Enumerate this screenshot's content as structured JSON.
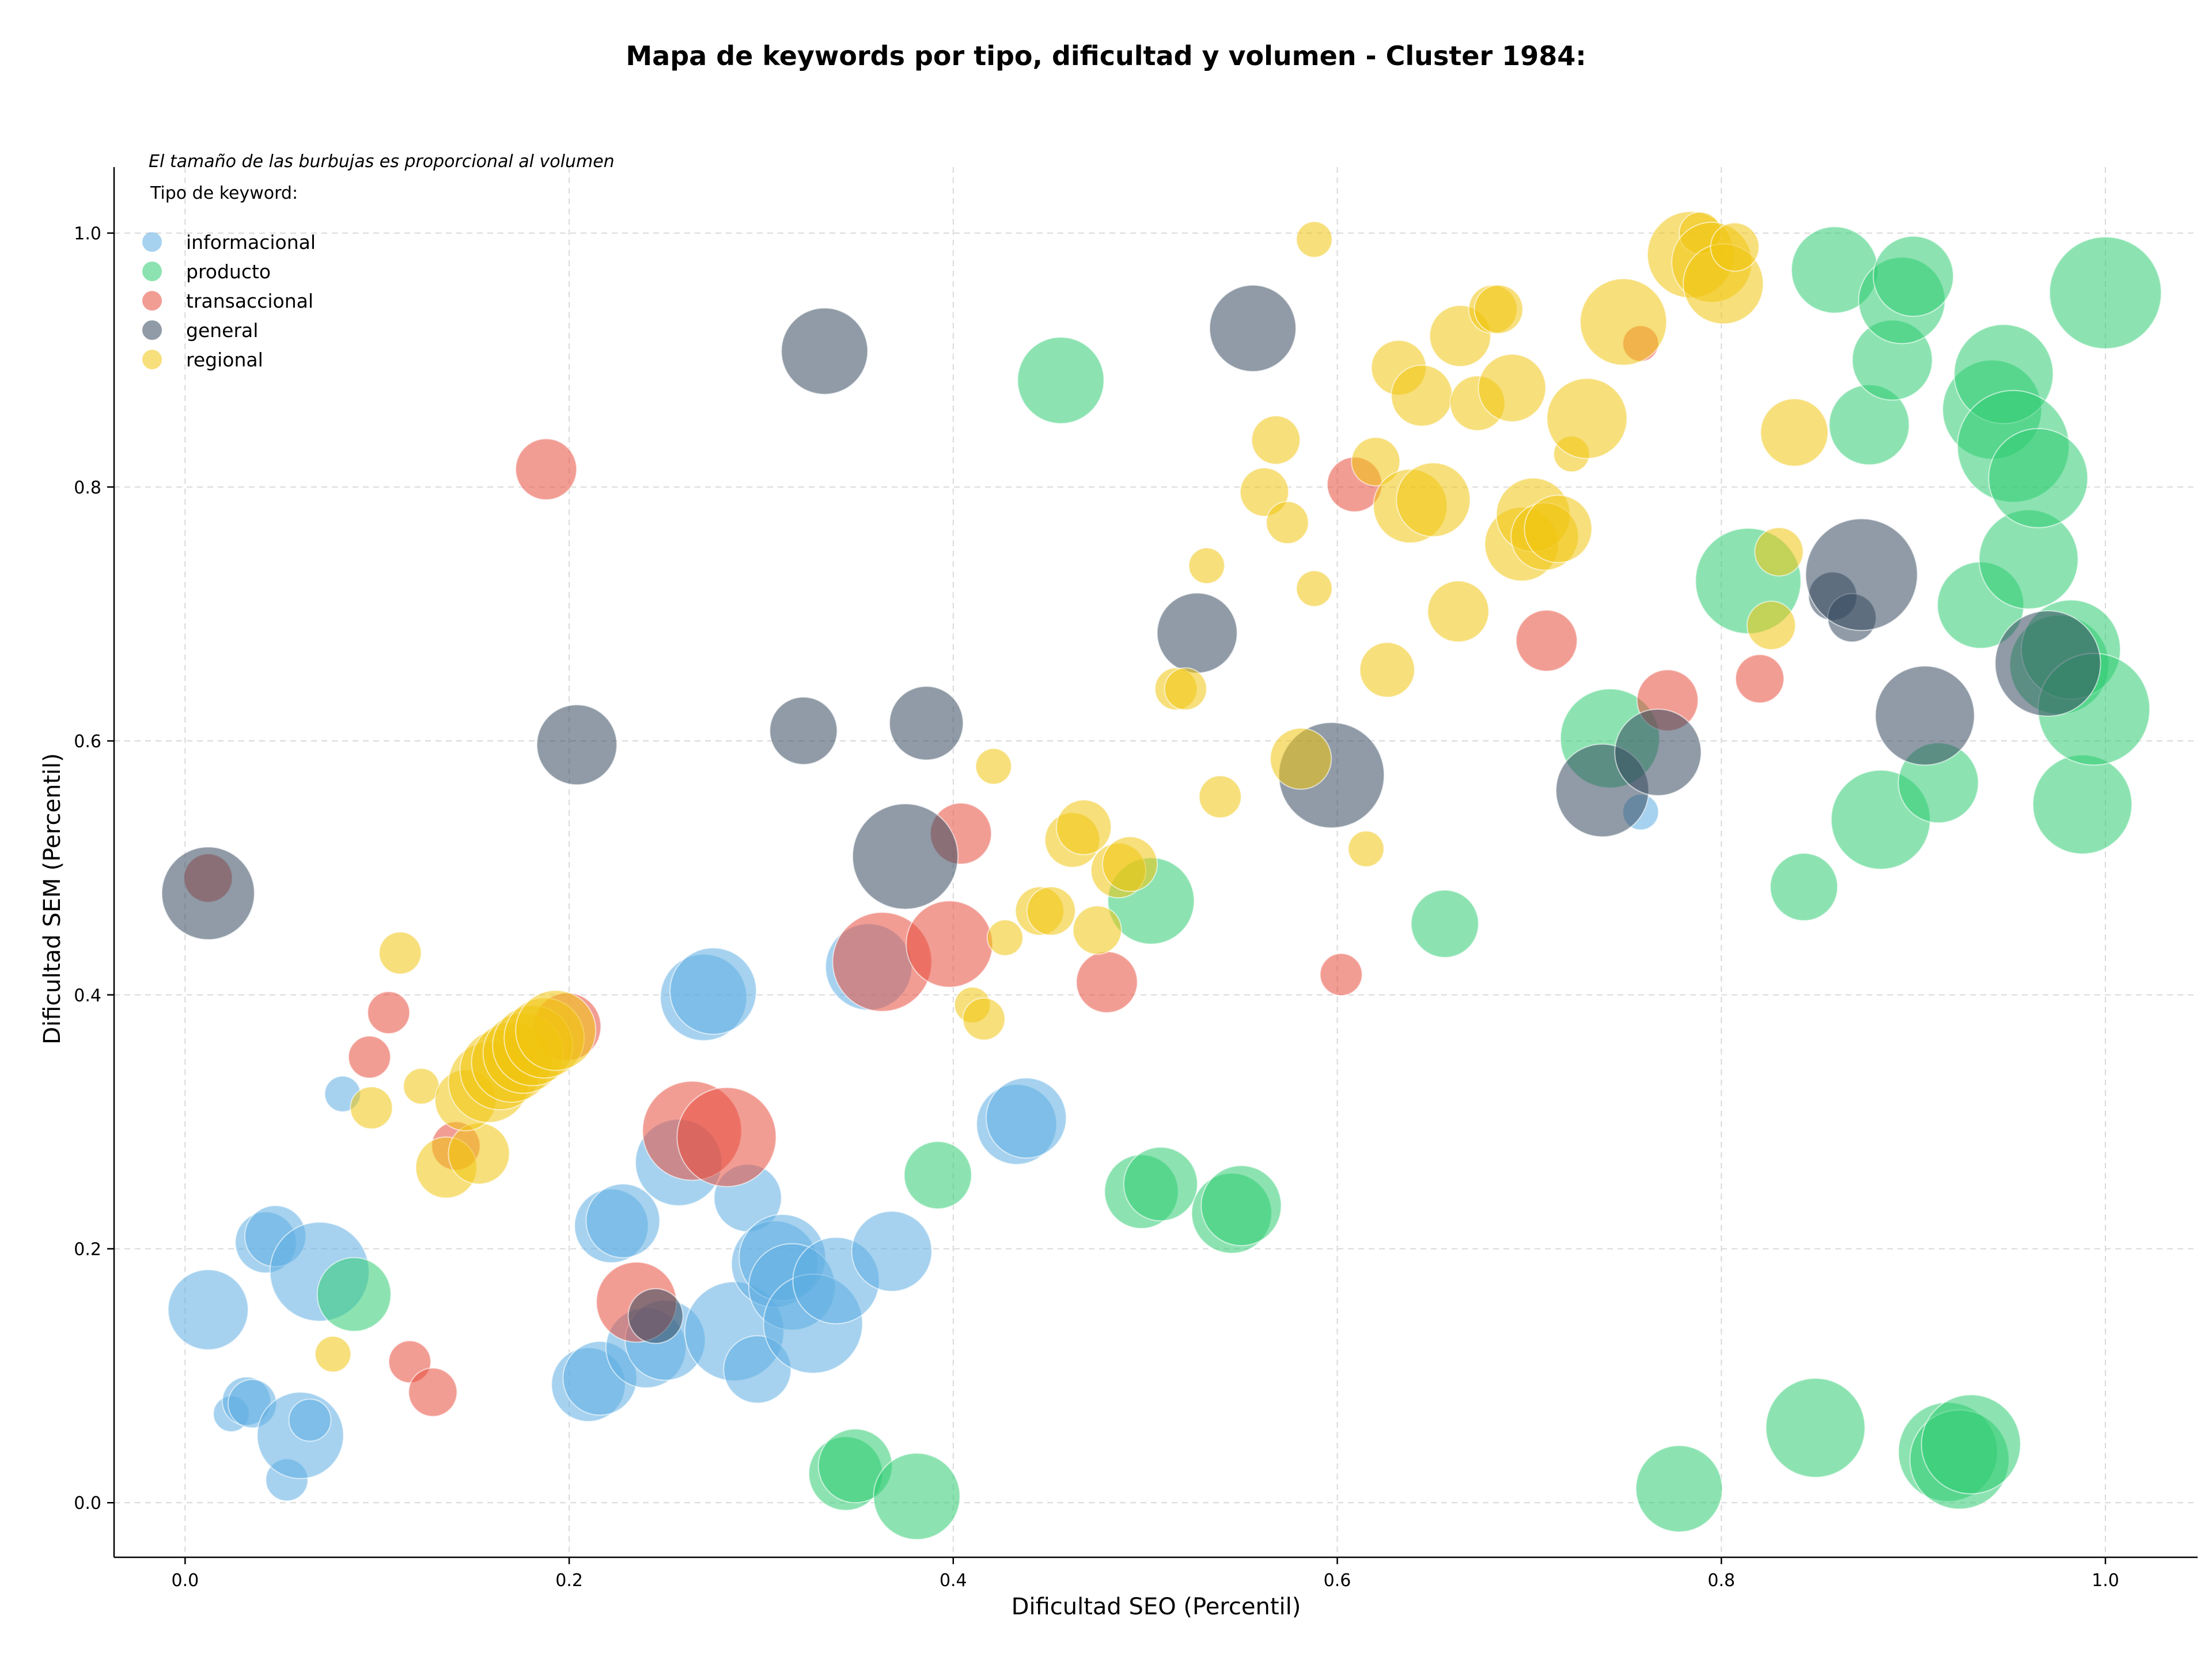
{
  "chart_data": {
    "type": "scatter",
    "title": "Mapa de keywords por tipo, dificultad y volumen - Cluster 1984:",
    "xlabel": "Dificultad SEO (Percentil)",
    "ylabel": "Dificultad SEM (Percentil)",
    "note": "El tamaño de las burbujas es proporcional al volumen",
    "legend_title": "Tipo de keyword:",
    "legend_position": "top-left",
    "xlim": [
      -0.037,
      1.048
    ],
    "ylim": [
      -0.043,
      1.052
    ],
    "x_ticks": [
      "0.0",
      "0.2",
      "0.4",
      "0.6",
      "0.8",
      "1.0"
    ],
    "y_ticks": [
      "0.0",
      "0.2",
      "0.4",
      "0.6",
      "0.8",
      "1.0"
    ],
    "grid": true,
    "size_encoding": "volumen",
    "colors": {
      "informacional": "#5dade2",
      "producto": "#2ecc71",
      "transaccional": "#e74c3c",
      "general": "#34495e",
      "regional": "#f1c40f"
    },
    "series": [
      {
        "name": "informacional",
        "color": "#5dade2",
        "points": [
          [
            0.012,
            0.152,
            0.45
          ],
          [
            0.024,
            0.07,
            0.1
          ],
          [
            0.032,
            0.08,
            0.2
          ],
          [
            0.035,
            0.078,
            0.2
          ],
          [
            0.042,
            0.205,
            0.3
          ],
          [
            0.047,
            0.21,
            0.3
          ],
          [
            0.053,
            0.018,
            0.15
          ],
          [
            0.06,
            0.053,
            0.5
          ],
          [
            0.065,
            0.065,
            0.15
          ],
          [
            0.07,
            0.182,
            0.6
          ],
          [
            0.082,
            0.322,
            0.1
          ],
          [
            0.21,
            0.093,
            0.4
          ],
          [
            0.216,
            0.098,
            0.4
          ],
          [
            0.222,
            0.218,
            0.4
          ],
          [
            0.228,
            0.222,
            0.4
          ],
          [
            0.24,
            0.122,
            0.45
          ],
          [
            0.25,
            0.128,
            0.45
          ],
          [
            0.257,
            0.268,
            0.5
          ],
          [
            0.27,
            0.398,
            0.5
          ],
          [
            0.275,
            0.403,
            0.5
          ],
          [
            0.286,
            0.135,
            0.6
          ],
          [
            0.293,
            0.24,
            0.35
          ],
          [
            0.298,
            0.105,
            0.35
          ],
          [
            0.307,
            0.188,
            0.5
          ],
          [
            0.311,
            0.193,
            0.5
          ],
          [
            0.316,
            0.17,
            0.5
          ],
          [
            0.327,
            0.141,
            0.6
          ],
          [
            0.339,
            0.175,
            0.5
          ],
          [
            0.368,
            0.198,
            0.45
          ],
          [
            0.356,
            0.422,
            0.5
          ],
          [
            0.433,
            0.298,
            0.45
          ],
          [
            0.438,
            0.303,
            0.45
          ],
          [
            0.758,
            0.544,
            0.1
          ]
        ]
      },
      {
        "name": "producto",
        "color": "#2ecc71",
        "points": [
          [
            0.088,
            0.164,
            0.4
          ],
          [
            0.344,
            0.023,
            0.4
          ],
          [
            0.349,
            0.029,
            0.4
          ],
          [
            0.381,
            0.005,
            0.5
          ],
          [
            0.392,
            0.258,
            0.35
          ],
          [
            0.456,
            0.884,
            0.5
          ],
          [
            0.498,
            0.245,
            0.4
          ],
          [
            0.508,
            0.251,
            0.4
          ],
          [
            0.503,
            0.474,
            0.5
          ],
          [
            0.545,
            0.228,
            0.45
          ],
          [
            0.55,
            0.234,
            0.45
          ],
          [
            0.656,
            0.456,
            0.35
          ],
          [
            0.742,
            0.602,
            0.6
          ],
          [
            0.778,
            0.011,
            0.5
          ],
          [
            0.814,
            0.726,
            0.65
          ],
          [
            0.843,
            0.485,
            0.35
          ],
          [
            0.849,
            0.059,
            0.6
          ],
          [
            0.859,
            0.971,
            0.5
          ],
          [
            0.877,
            0.849,
            0.45
          ],
          [
            0.883,
            0.538,
            0.6
          ],
          [
            0.889,
            0.9,
            0.45
          ],
          [
            0.894,
            0.947,
            0.5
          ],
          [
            0.9,
            0.966,
            0.45
          ],
          [
            0.913,
            0.567,
            0.45
          ],
          [
            0.918,
            0.04,
            0.6
          ],
          [
            0.924,
            0.034,
            0.6
          ],
          [
            0.93,
            0.046,
            0.6
          ],
          [
            0.935,
            0.707,
            0.5
          ],
          [
            0.941,
            0.861,
            0.6
          ],
          [
            0.947,
            0.889,
            0.6
          ],
          [
            0.952,
            0.832,
            0.7
          ],
          [
            0.96,
            0.743,
            0.6
          ],
          [
            0.965,
            0.807,
            0.6
          ],
          [
            0.976,
            0.66,
            0.6
          ],
          [
            0.982,
            0.672,
            0.6
          ],
          [
            0.988,
            0.55,
            0.6
          ],
          [
            0.994,
            0.625,
            0.7
          ],
          [
            1.0,
            0.953,
            0.7
          ]
        ]
      },
      {
        "name": "transaccional",
        "color": "#e74c3c",
        "points": [
          [
            0.012,
            0.492,
            0.2
          ],
          [
            0.096,
            0.351,
            0.15
          ],
          [
            0.106,
            0.386,
            0.15
          ],
          [
            0.117,
            0.111,
            0.15
          ],
          [
            0.129,
            0.087,
            0.2
          ],
          [
            0.141,
            0.281,
            0.2
          ],
          [
            0.188,
            0.814,
            0.3
          ],
          [
            0.199,
            0.375,
            0.35
          ],
          [
            0.235,
            0.158,
            0.45
          ],
          [
            0.264,
            0.293,
            0.6
          ],
          [
            0.282,
            0.288,
            0.6
          ],
          [
            0.363,
            0.426,
            0.6
          ],
          [
            0.398,
            0.44,
            0.5
          ],
          [
            0.404,
            0.527,
            0.3
          ],
          [
            0.48,
            0.41,
            0.3
          ],
          [
            0.602,
            0.416,
            0.15
          ],
          [
            0.609,
            0.802,
            0.25
          ],
          [
            0.709,
            0.679,
            0.3
          ],
          [
            0.758,
            0.913,
            0.1
          ],
          [
            0.772,
            0.632,
            0.3
          ],
          [
            0.82,
            0.649,
            0.2
          ]
        ]
      },
      {
        "name": "general",
        "color": "#34495e",
        "points": [
          [
            0.012,
            0.48,
            0.55
          ],
          [
            0.204,
            0.597,
            0.45
          ],
          [
            0.245,
            0.147,
            0.25
          ],
          [
            0.322,
            0.608,
            0.35
          ],
          [
            0.333,
            0.907,
            0.5
          ],
          [
            0.375,
            0.509,
            0.65
          ],
          [
            0.386,
            0.614,
            0.4
          ],
          [
            0.527,
            0.685,
            0.45
          ],
          [
            0.556,
            0.925,
            0.5
          ],
          [
            0.597,
            0.573,
            0.65
          ],
          [
            0.738,
            0.561,
            0.55
          ],
          [
            0.767,
            0.591,
            0.5
          ],
          [
            0.858,
            0.714,
            0.2
          ],
          [
            0.868,
            0.697,
            0.2
          ],
          [
            0.873,
            0.731,
            0.7
          ],
          [
            0.906,
            0.62,
            0.6
          ],
          [
            0.97,
            0.661,
            0.65
          ]
        ]
      },
      {
        "name": "regional",
        "color": "#f1c40f",
        "points": [
          [
            0.077,
            0.117,
            0.1
          ],
          [
            0.097,
            0.311,
            0.15
          ],
          [
            0.112,
            0.433,
            0.15
          ],
          [
            0.123,
            0.328,
            0.1
          ],
          [
            0.136,
            0.264,
            0.3
          ],
          [
            0.153,
            0.275,
            0.3
          ],
          [
            0.146,
            0.317,
            0.3
          ],
          [
            0.158,
            0.331,
            0.45
          ],
          [
            0.164,
            0.341,
            0.45
          ],
          [
            0.17,
            0.347,
            0.45
          ],
          [
            0.176,
            0.354,
            0.45
          ],
          [
            0.181,
            0.36,
            0.45
          ],
          [
            0.187,
            0.366,
            0.45
          ],
          [
            0.193,
            0.372,
            0.45
          ],
          [
            0.41,
            0.392,
            0.1
          ],
          [
            0.416,
            0.381,
            0.15
          ],
          [
            0.421,
            0.58,
            0.1
          ],
          [
            0.427,
            0.445,
            0.1
          ],
          [
            0.445,
            0.466,
            0.2
          ],
          [
            0.451,
            0.466,
            0.2
          ],
          [
            0.462,
            0.522,
            0.25
          ],
          [
            0.468,
            0.532,
            0.25
          ],
          [
            0.475,
            0.451,
            0.2
          ],
          [
            0.486,
            0.498,
            0.25
          ],
          [
            0.492,
            0.503,
            0.25
          ],
          [
            0.516,
            0.641,
            0.15
          ],
          [
            0.521,
            0.641,
            0.15
          ],
          [
            0.532,
            0.738,
            0.1
          ],
          [
            0.539,
            0.556,
            0.15
          ],
          [
            0.562,
            0.796,
            0.2
          ],
          [
            0.568,
            0.837,
            0.2
          ],
          [
            0.574,
            0.772,
            0.15
          ],
          [
            0.581,
            0.586,
            0.3
          ],
          [
            0.588,
            0.995,
            0.1
          ],
          [
            0.588,
            0.72,
            0.1
          ],
          [
            0.615,
            0.515,
            0.1
          ],
          [
            0.62,
            0.82,
            0.2
          ],
          [
            0.626,
            0.656,
            0.25
          ],
          [
            0.632,
            0.894,
            0.25
          ],
          [
            0.638,
            0.785,
            0.4
          ],
          [
            0.644,
            0.872,
            0.3
          ],
          [
            0.65,
            0.79,
            0.4
          ],
          [
            0.663,
            0.702,
            0.3
          ],
          [
            0.664,
            0.919,
            0.3
          ],
          [
            0.673,
            0.866,
            0.25
          ],
          [
            0.681,
            0.94,
            0.2
          ],
          [
            0.684,
            0.94,
            0.2
          ],
          [
            0.691,
            0.878,
            0.35
          ],
          [
            0.696,
            0.755,
            0.4
          ],
          [
            0.702,
            0.778,
            0.4
          ],
          [
            0.708,
            0.761,
            0.35
          ],
          [
            0.715,
            0.767,
            0.35
          ],
          [
            0.722,
            0.826,
            0.1
          ],
          [
            0.73,
            0.854,
            0.45
          ],
          [
            0.749,
            0.93,
            0.5
          ],
          [
            0.784,
            0.983,
            0.5
          ],
          [
            0.789,
            1.0,
            0.15
          ],
          [
            0.795,
            0.977,
            0.45
          ],
          [
            0.801,
            0.96,
            0.45
          ],
          [
            0.807,
            0.989,
            0.2
          ],
          [
            0.826,
            0.691,
            0.2
          ],
          [
            0.83,
            0.749,
            0.2
          ],
          [
            0.838,
            0.843,
            0.35
          ]
        ]
      }
    ]
  }
}
